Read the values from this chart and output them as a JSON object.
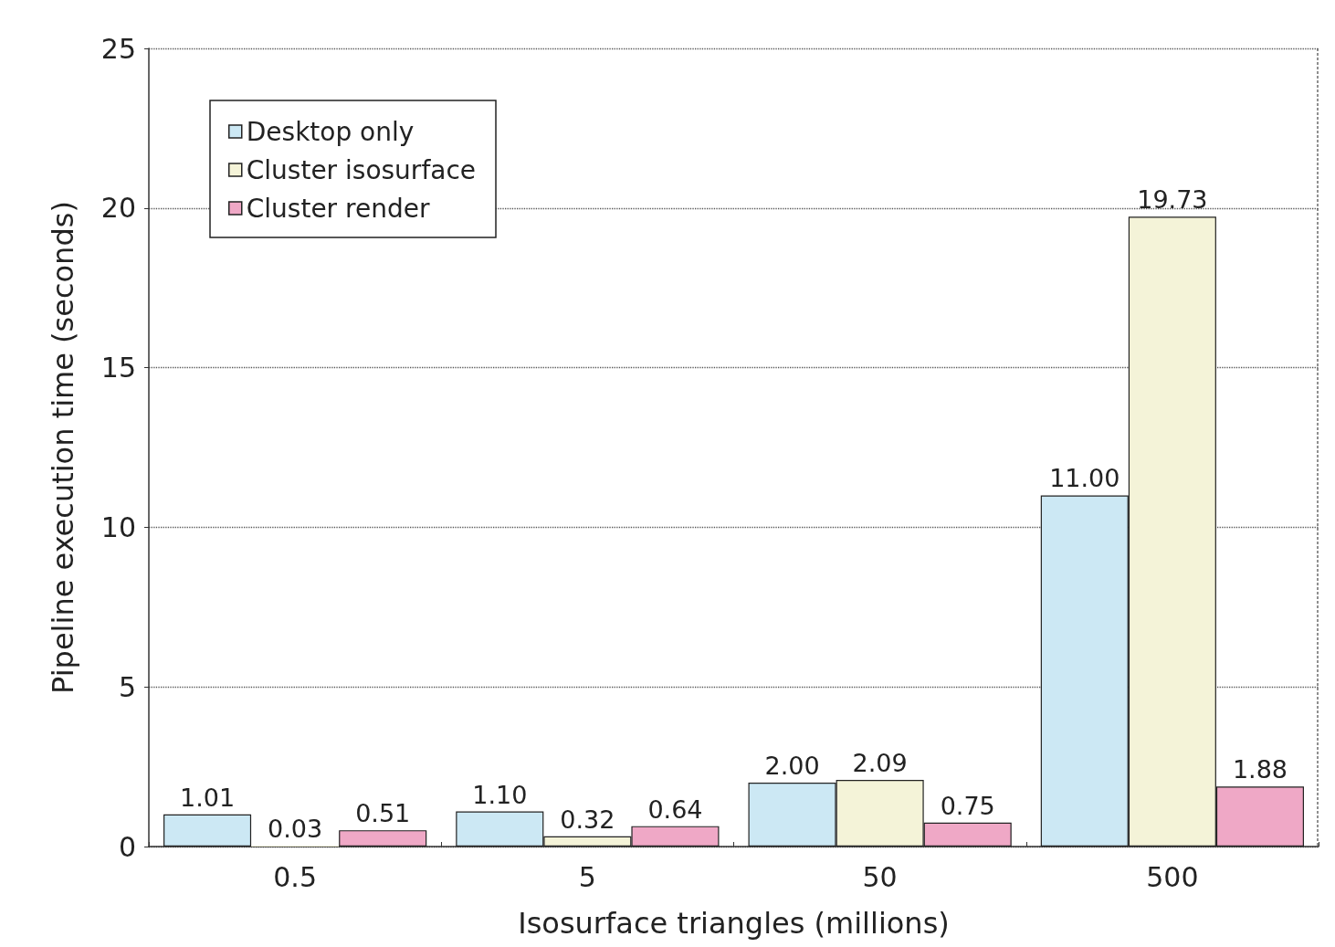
{
  "chart_data": {
    "type": "bar",
    "xlabel": "Isosurface triangles (millions)",
    "ylabel": "Pipeline execution time (seconds)",
    "categories": [
      "0.5",
      "5",
      "50",
      "500"
    ],
    "series": [
      {
        "name": "Desktop only",
        "color": "#cce8f4",
        "values": [
          1.01,
          1.1,
          2.0,
          11.0
        ],
        "value_labels": [
          "1.01",
          "1.10",
          "2.00",
          "11.00"
        ]
      },
      {
        "name": "Cluster isosurface",
        "color": "#f4f3d8",
        "values": [
          0.03,
          0.32,
          2.09,
          19.73
        ],
        "value_labels": [
          "0.03",
          "0.32",
          "2.09",
          "19.73"
        ]
      },
      {
        "name": "Cluster render",
        "color": "#efa8c6",
        "values": [
          0.51,
          0.64,
          0.75,
          1.88
        ],
        "value_labels": [
          "0.51",
          "0.64",
          "0.75",
          "1.88"
        ]
      }
    ],
    "ylim": [
      0,
      25
    ],
    "yticks": [
      0,
      5,
      10,
      15,
      20,
      25
    ],
    "grid": "y",
    "legend": "top left"
  }
}
